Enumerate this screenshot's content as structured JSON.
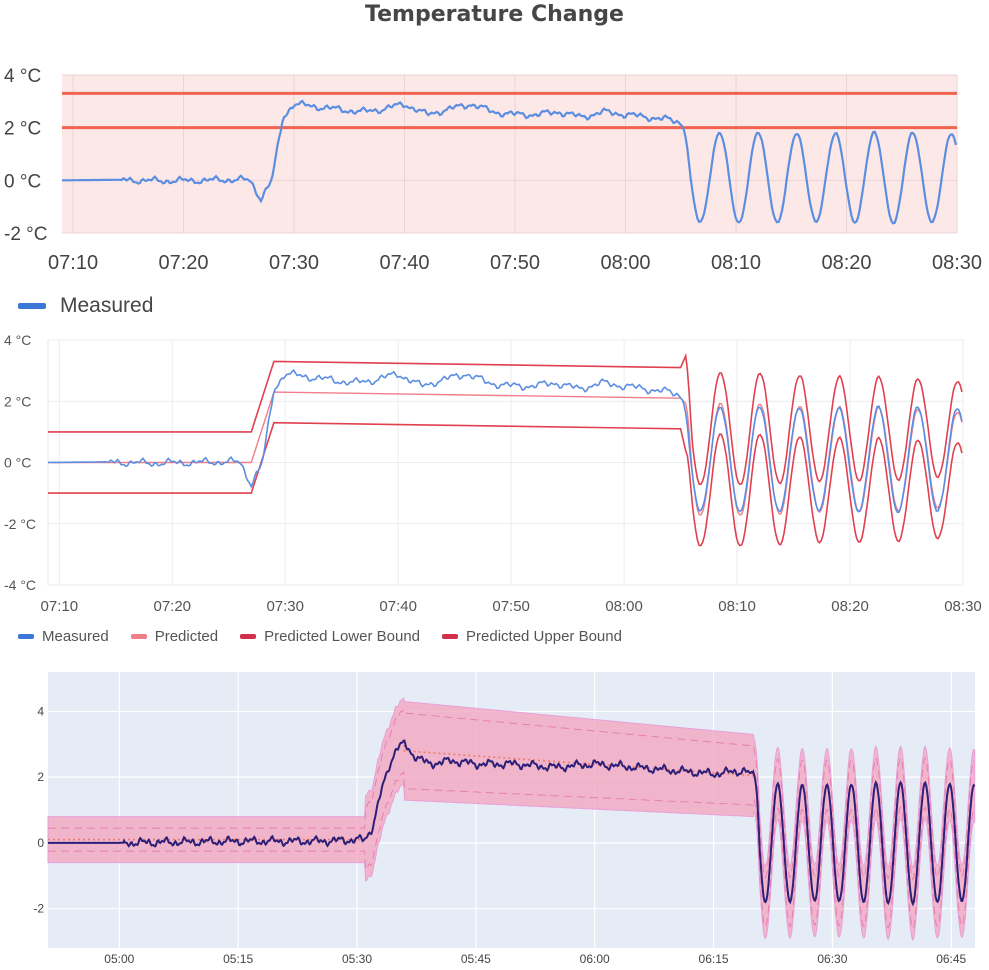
{
  "page": {
    "title": "Temperature Change"
  },
  "colors": {
    "measured": "#5b8ee0",
    "threshold": "#f0644f",
    "bound_band_fill": "#fde8e8",
    "predicted": "#f07e8a",
    "lower_bound": "#e0404f",
    "upper_bound": "#e0404f",
    "dark_measured": "#2d1f78",
    "band_fill": "#f3a7c0",
    "plot_bg": "#e5ecf6"
  },
  "chart_data": [
    {
      "type": "line",
      "title": "Temperature Change",
      "xlabel": "",
      "ylabel": "",
      "x_unit": "minutes",
      "xlim": [
        "07:09",
        "08:30"
      ],
      "ylim": [
        -2,
        4
      ],
      "x_ticks": [
        "07:10",
        "07:20",
        "07:30",
        "07:40",
        "07:50",
        "08:00",
        "08:10",
        "08:20",
        "08:30"
      ],
      "y_ticks": [
        "-2 °C",
        "0 °C",
        "2 °C",
        "4 °C"
      ],
      "thresholds": [
        3.3,
        2.0
      ],
      "shaded_range": [
        -2,
        4
      ],
      "grid": true,
      "legend": {
        "position": "bottom-left",
        "entries": [
          "Measured"
        ]
      },
      "series": [
        {
          "name": "Measured",
          "points": [
            [
              "07:09",
              0.0
            ],
            [
              "07:14",
              0.02
            ],
            [
              "07:18",
              -0.02
            ],
            [
              "07:22",
              0.0
            ],
            [
              "07:25",
              0.03
            ],
            [
              "07:26",
              0.0
            ],
            [
              "07:27",
              -0.7
            ],
            [
              "07:28",
              0.0
            ],
            [
              "07:29",
              2.4
            ],
            [
              "07:30",
              2.9
            ],
            [
              "07:32",
              2.8
            ],
            [
              "07:34",
              2.7
            ],
            [
              "07:36",
              2.6
            ],
            [
              "07:38",
              2.7
            ],
            [
              "07:40",
              2.9
            ],
            [
              "07:42",
              2.5
            ],
            [
              "07:44",
              2.7
            ],
            [
              "07:46",
              2.9
            ],
            [
              "07:48",
              2.6
            ],
            [
              "07:50",
              2.5
            ],
            [
              "07:52",
              2.5
            ],
            [
              "07:54",
              2.6
            ],
            [
              "07:56",
              2.4
            ],
            [
              "07:58",
              2.6
            ],
            [
              "08:00",
              2.5
            ],
            [
              "08:02",
              2.4
            ],
            [
              "08:04",
              2.3
            ],
            [
              "08:05",
              2.2
            ]
          ],
          "oscillation": {
            "start": "08:05",
            "end": "08:30",
            "period_minutes": 3.5,
            "min": -1.6,
            "max": 1.8
          }
        }
      ]
    },
    {
      "type": "line",
      "xlabel": "",
      "ylabel": "",
      "xlim": [
        "07:09",
        "08:30"
      ],
      "ylim": [
        -4,
        4
      ],
      "x_ticks": [
        "07:10",
        "07:20",
        "07:30",
        "07:40",
        "07:50",
        "08:00",
        "08:10",
        "08:20",
        "08:30"
      ],
      "y_ticks": [
        "-4 °C",
        "-2 °C",
        "0 °C",
        "2 °C",
        "4 °C"
      ],
      "grid": true,
      "legend": {
        "position": "bottom-left",
        "entries": [
          "Measured",
          "Predicted",
          "Predicted Lower Bound",
          "Predicted Upper Bound"
        ]
      },
      "series": [
        {
          "name": "Measured"
        },
        {
          "name": "Predicted"
        },
        {
          "name": "Predicted Lower Bound"
        },
        {
          "name": "Predicted Upper Bound"
        }
      ],
      "bounds": {
        "flat_before": {
          "start": "07:09",
          "end": "07:27",
          "lower": -1.0,
          "upper": 1.0,
          "mid": 0.0
        },
        "plateau": {
          "start": "07:29",
          "end": "08:05",
          "lower_start": 1.3,
          "lower_end": 1.1,
          "mid_start": 2.3,
          "mid_end": 2.1,
          "upper_start": 3.3,
          "upper_end": 3.1
        },
        "oscillation_offset": 1.0
      }
    },
    {
      "type": "line",
      "xlabel": "",
      "ylabel": "",
      "xlim": [
        "04:51",
        "06:48"
      ],
      "ylim": [
        -3.2,
        5.2
      ],
      "x_ticks": [
        "05:00",
        "05:15",
        "05:30",
        "05:45",
        "06:00",
        "06:15",
        "06:30",
        "06:45"
      ],
      "y_ticks": [
        "-2",
        "0",
        "2",
        "4"
      ],
      "grid": true,
      "series": [
        {
          "name": "",
          "points": [
            [
              "04:51",
              0.0
            ],
            [
              "05:00",
              0.0
            ],
            [
              "05:15",
              0.05
            ],
            [
              "05:25",
              0.05
            ],
            [
              "05:31",
              0.1
            ],
            [
              "05:32",
              0.5
            ],
            [
              "05:33",
              1.5
            ],
            [
              "05:34",
              2.3
            ],
            [
              "05:35",
              2.9
            ],
            [
              "05:36",
              3.0
            ],
            [
              "05:37",
              2.7
            ],
            [
              "05:39",
              2.4
            ],
            [
              "05:42",
              2.5
            ],
            [
              "05:45",
              2.4
            ],
            [
              "05:50",
              2.4
            ],
            [
              "05:55",
              2.3
            ],
            [
              "06:00",
              2.4
            ],
            [
              "06:05",
              2.3
            ],
            [
              "06:10",
              2.2
            ],
            [
              "06:15",
              2.1
            ],
            [
              "06:19",
              2.2
            ],
            [
              "06:20",
              2.0
            ]
          ],
          "oscillation": {
            "start": "06:20",
            "end": "06:48",
            "period_minutes": 3.1,
            "min": -1.8,
            "max": 1.8
          }
        }
      ],
      "band": {
        "before_lower": -0.6,
        "before_upper": 0.8,
        "plateau_lower_start": 1.3,
        "plateau_upper_start": 4.3,
        "plateau_lower_end": 0.8,
        "plateau_upper_end": 3.3,
        "oscillation_halfwidth": 1.1
      }
    }
  ]
}
